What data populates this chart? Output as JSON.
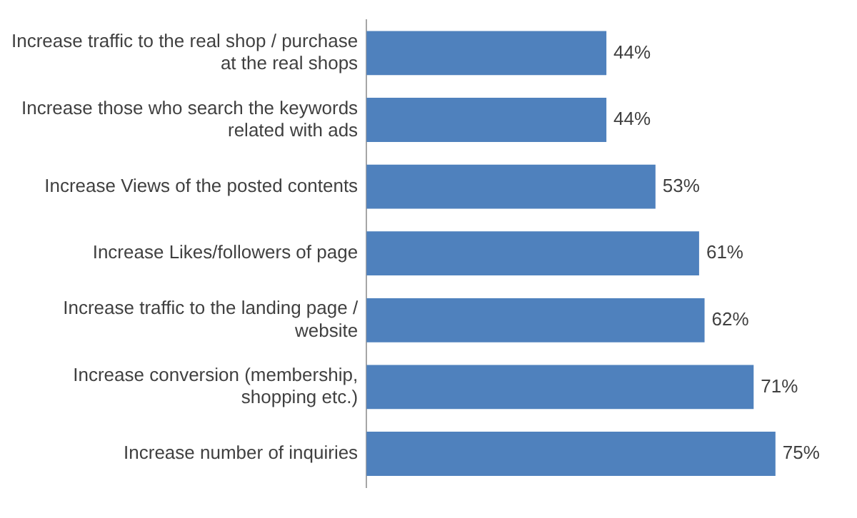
{
  "chart_data": {
    "type": "bar",
    "orientation": "horizontal",
    "categories": [
      "Increase traffic to the real shop / purchase at the real shops",
      "Increase those who search the keywords related with ads",
      "Increase Views of the posted contents",
      "Increase Likes/followers of page",
      "Increase traffic to the landing page / website",
      "Increase conversion (membership, shopping etc.)",
      "Increase number of inquiries"
    ],
    "values": [
      44,
      44,
      53,
      61,
      62,
      71,
      75
    ],
    "value_labels": [
      "44%",
      "44%",
      "53%",
      "61%",
      "62%",
      "71%",
      "75%"
    ],
    "color": "#4f81bd",
    "tick_labels": "y",
    "grid": false,
    "legend": false
  }
}
